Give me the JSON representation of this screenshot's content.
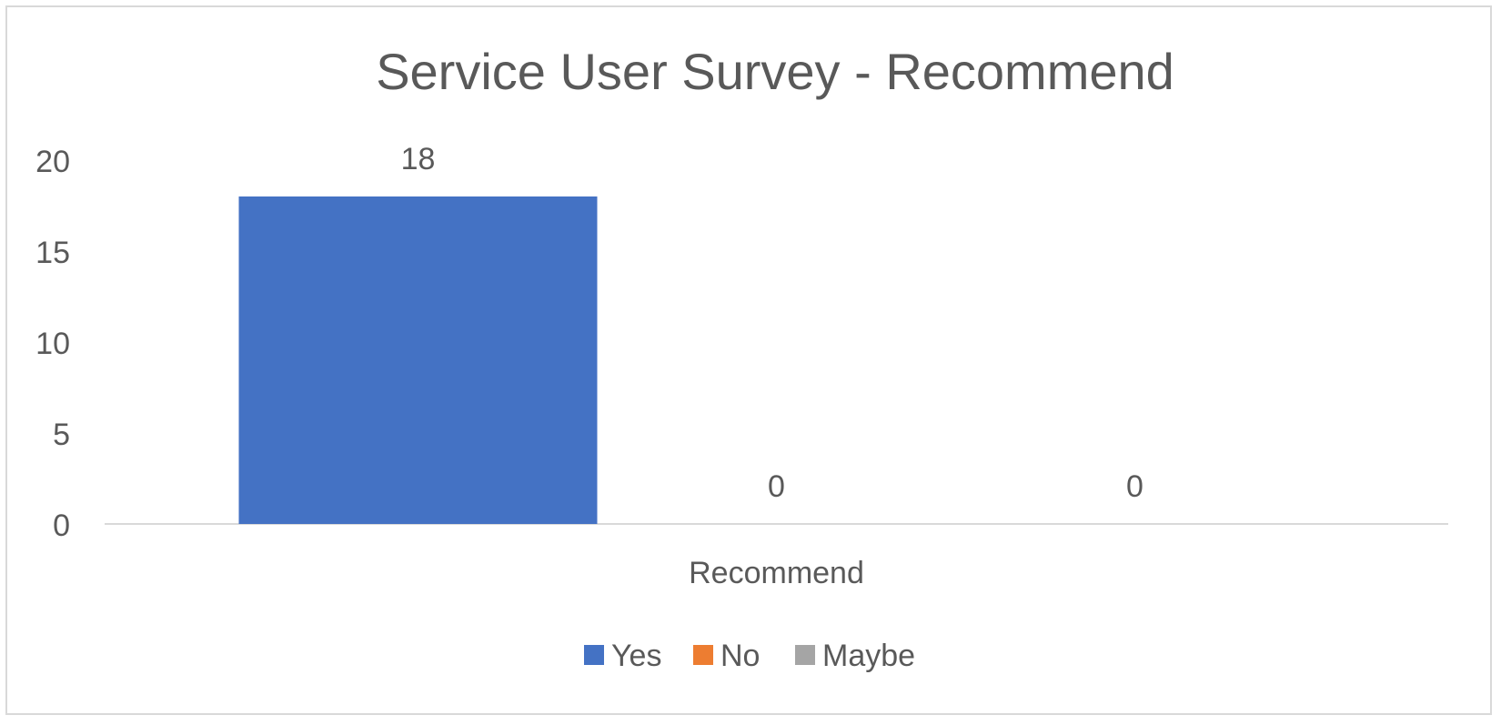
{
  "chart_data": {
    "type": "bar",
    "title": "Service User Survey - Recommend",
    "categories": [
      "Recommend"
    ],
    "series": [
      {
        "name": "Yes",
        "values": [
          18
        ],
        "color": "#4472C4"
      },
      {
        "name": "No",
        "values": [
          0
        ],
        "color": "#ED7D31"
      },
      {
        "name": "Maybe",
        "values": [
          0
        ],
        "color": "#A5A5A5"
      }
    ],
    "ylim": [
      0,
      20
    ],
    "yticks": [
      "0",
      "5",
      "10",
      "15",
      "20"
    ],
    "grid": false,
    "data_labels": true,
    "legend_position": "bottom"
  }
}
